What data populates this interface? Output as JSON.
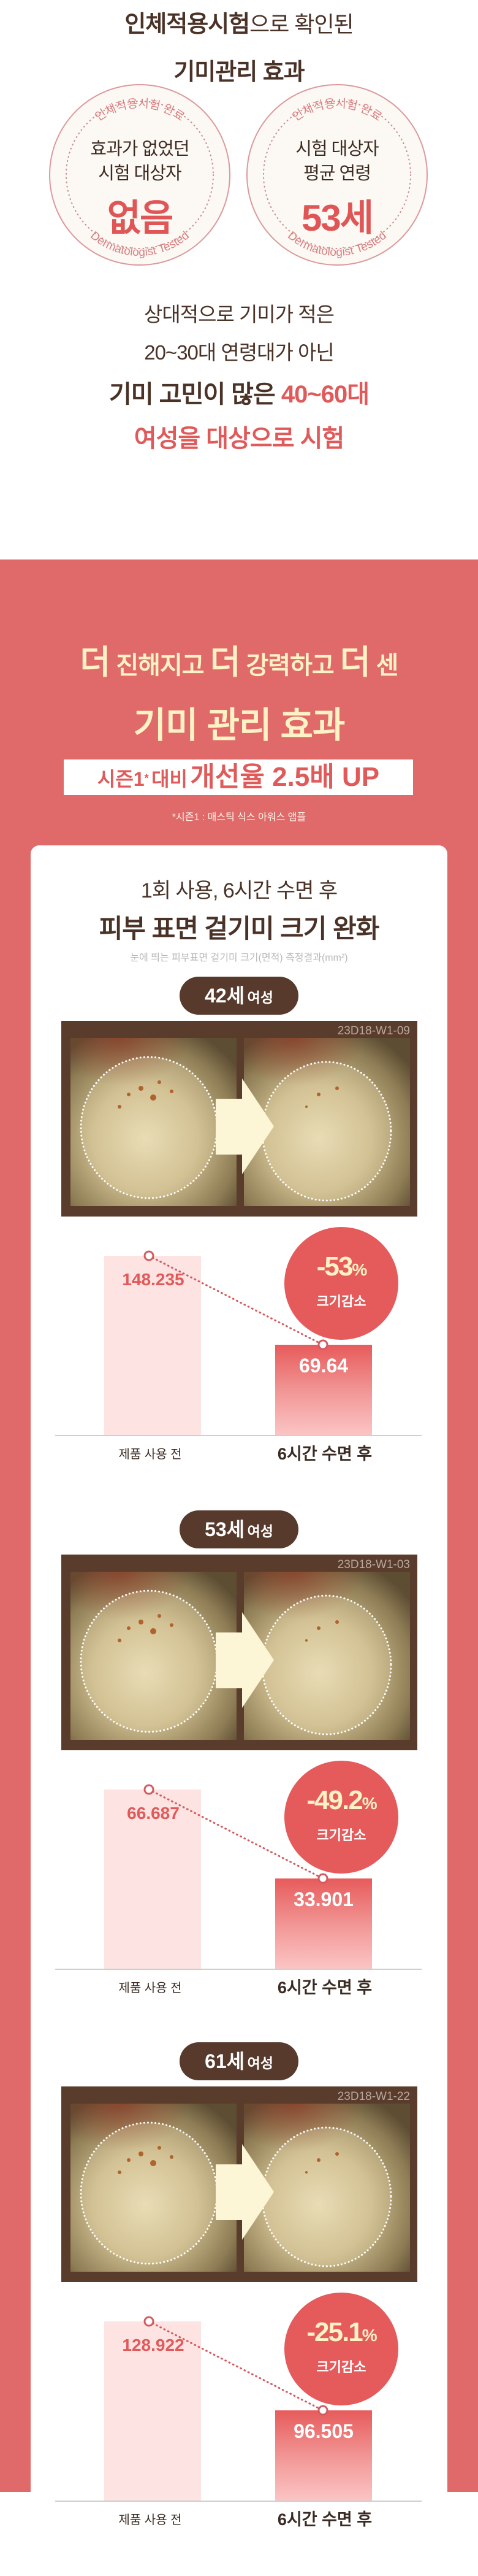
{
  "header": {
    "title_bold": "인체적용시험",
    "title_rest": "으로 확인된",
    "title_line2": "기미관리 효과"
  },
  "stamps": [
    {
      "arc_top": "인체적용시험 완료",
      "arc_bottom": "Dermatologist Tested",
      "line1": "효과가 없었던",
      "line2": "시험 대상자",
      "value": "없음"
    },
    {
      "arc_top": "인체적용시험 완료",
      "arc_bottom": "Dermatologist Tested",
      "line1": "시험 대상자",
      "line2": "평균 연령",
      "value": "53세"
    }
  ],
  "intro": {
    "line1": "상대적으로 기미가 적은",
    "line2": "20~30대 연령대가 아닌",
    "line3_dark": "기미 고민이 많은 ",
    "line3_red": "40~60대",
    "line4": "여성을 대상으로 시험"
  },
  "promo": {
    "more": "더",
    "part1": "진해지고",
    "part2": "강력하고",
    "part3": "센",
    "line2": "기미 관리 효과",
    "box_small": "시즌1",
    "box_star": "*",
    "box_small2": "대비",
    "box_big": "개선율 2.5배 UP",
    "footnote": "*시즌1 : 매스틱 식스 아워스 앰플"
  },
  "card": {
    "line1": "1회 사용, 6시간 수면 후",
    "line2": "피부 표면 겉기미 크기 완화",
    "sub": "눈에 띄는 피부표면 겉기미 크기(면적) 측정결과(mm²)"
  },
  "colors": {
    "brown": "#4a3227",
    "red": "#e05a5a",
    "red_bg": "#df6a69",
    "yellow": "#fff3c6",
    "pill": "#573a2b"
  },
  "blocks": [
    {
      "age": "42세",
      "sex": "여성",
      "photo_id": "23D18-W1-09",
      "before": "148.235",
      "after": "69.64",
      "change": "-53",
      "unit": "%",
      "change_label": "크기감소",
      "before_label": "제품 사용 전",
      "after_label": "6시간 수면 후"
    },
    {
      "age": "53세",
      "sex": "여성",
      "photo_id": "23D18-W1-03",
      "before": "66.687",
      "after": "33.901",
      "change": "-49.2",
      "unit": "%",
      "change_label": "크기감소",
      "before_label": "제품 사용 전",
      "after_label": "6시간 수면 후"
    },
    {
      "age": "61세",
      "sex": "여성",
      "photo_id": "23D18-W1-22",
      "before": "128.922",
      "after": "96.505",
      "change": "-25.1",
      "unit": "%",
      "change_label": "크기감소",
      "before_label": "제품 사용 전",
      "after_label": "6시간 수면 후"
    }
  ]
}
